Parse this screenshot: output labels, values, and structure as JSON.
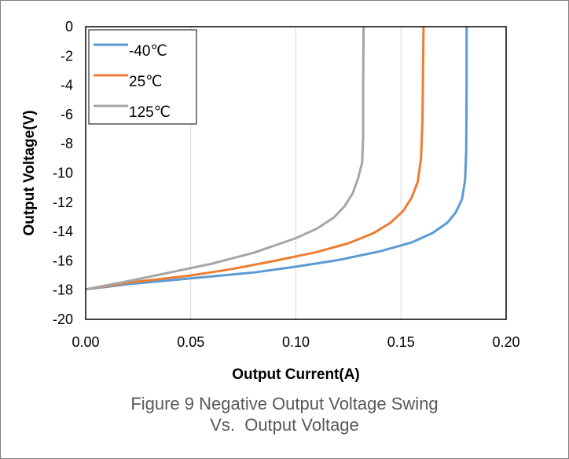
{
  "chart_data": {
    "type": "line",
    "xlabel": "Output Current(A)",
    "ylabel": "Output Voltage(V)",
    "xlim": [
      0,
      0.2
    ],
    "ylim": [
      -20,
      0
    ],
    "x_ticks": [
      "0.00",
      "0.05",
      "0.10",
      "0.15",
      "0.20"
    ],
    "y_ticks": [
      "0",
      "-2",
      "-4",
      "-6",
      "-8",
      "-10",
      "-12",
      "-14",
      "-16",
      "-18",
      "-20"
    ],
    "grid": "vertical",
    "legend_position": "top-left",
    "series": [
      {
        "name": "-40℃",
        "color": "#5b9bd5",
        "points": [
          [
            0.0,
            -17.95
          ],
          [
            0.02,
            -17.6
          ],
          [
            0.05,
            -17.2
          ],
          [
            0.08,
            -16.8
          ],
          [
            0.1,
            -16.4
          ],
          [
            0.12,
            -15.95
          ],
          [
            0.14,
            -15.35
          ],
          [
            0.155,
            -14.75
          ],
          [
            0.165,
            -14.1
          ],
          [
            0.172,
            -13.4
          ],
          [
            0.176,
            -12.7
          ],
          [
            0.179,
            -11.8
          ],
          [
            0.1805,
            -10.5
          ],
          [
            0.181,
            -8.5
          ],
          [
            0.1812,
            -4
          ],
          [
            0.1812,
            0
          ]
        ]
      },
      {
        "name": "25℃",
        "color": "#ed7d31",
        "points": [
          [
            0.0,
            -17.95
          ],
          [
            0.02,
            -17.5
          ],
          [
            0.05,
            -17.0
          ],
          [
            0.07,
            -16.55
          ],
          [
            0.09,
            -16.0
          ],
          [
            0.11,
            -15.4
          ],
          [
            0.125,
            -14.8
          ],
          [
            0.137,
            -14.1
          ],
          [
            0.145,
            -13.4
          ],
          [
            0.151,
            -12.6
          ],
          [
            0.155,
            -11.7
          ],
          [
            0.158,
            -10.6
          ],
          [
            0.1595,
            -9.0
          ],
          [
            0.1602,
            -6.5
          ],
          [
            0.1605,
            -3
          ],
          [
            0.1607,
            0
          ]
        ]
      },
      {
        "name": "125℃",
        "color": "#a5a5a5",
        "points": [
          [
            0.0,
            -17.95
          ],
          [
            0.02,
            -17.4
          ],
          [
            0.04,
            -16.8
          ],
          [
            0.06,
            -16.2
          ],
          [
            0.08,
            -15.45
          ],
          [
            0.1,
            -14.45
          ],
          [
            0.11,
            -13.8
          ],
          [
            0.118,
            -13.05
          ],
          [
            0.123,
            -12.3
          ],
          [
            0.127,
            -11.4
          ],
          [
            0.1295,
            -10.4
          ],
          [
            0.1315,
            -9.3
          ],
          [
            0.132,
            -7.5
          ],
          [
            0.132,
            -4
          ],
          [
            0.1322,
            0
          ]
        ]
      }
    ]
  },
  "caption": {
    "line1": "Figure 9 Negative Output Voltage Swing",
    "line2": "Vs.  Output Voltage"
  }
}
